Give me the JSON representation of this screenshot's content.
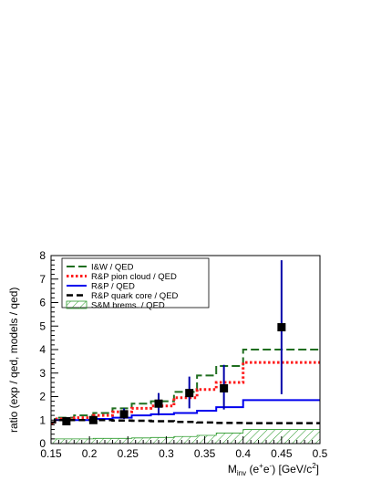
{
  "chart_data": {
    "type": "step",
    "xlim": [
      0.15,
      0.5
    ],
    "ylim": [
      0,
      8
    ],
    "x_ticks": [
      "0.15",
      "0.2",
      "0.25",
      "0.3",
      "0.35",
      "0.4",
      "0.45",
      "0.5"
    ],
    "y_ticks": [
      "0",
      "1",
      "2",
      "3",
      "4",
      "5",
      "6",
      "7",
      "8"
    ],
    "xlabel_main": "M",
    "xlabel_sub": "inv",
    "xlabel_rest": " (e",
    "xlabel_sup1": "+",
    "xlabel_mid": "e",
    "xlabel_sup2": "-",
    "xlabel_end": ") [GeV/c",
    "xlabel_sup3": "2",
    "xlabel_close": "]",
    "ylabel": "ratio (exp / qed, models / qed)",
    "bin_edges": [
      0.15,
      0.155,
      0.18,
      0.205,
      0.23,
      0.255,
      0.28,
      0.31,
      0.34,
      0.365,
      0.4,
      0.5
    ],
    "series": [
      {
        "name": "I&W / QED",
        "style": "long-dash",
        "color": "#1f6e1f",
        "values": [
          0.9,
          1.1,
          1.2,
          1.3,
          1.5,
          1.7,
          1.8,
          2.2,
          2.9,
          3.3,
          4.0
        ]
      },
      {
        "name": "R&P pion cloud / QED",
        "style": "dotted",
        "color": "#ff1a1a",
        "values": [
          0.85,
          1.05,
          1.1,
          1.2,
          1.35,
          1.5,
          1.6,
          1.95,
          2.3,
          2.6,
          3.45
        ]
      },
      {
        "name": "R&P / QED",
        "style": "solid",
        "color": "#0000ee",
        "values": [
          0.9,
          1.0,
          1.0,
          1.05,
          1.1,
          1.2,
          1.25,
          1.3,
          1.4,
          1.55,
          1.85
        ]
      },
      {
        "name": "R&P quark core / QED",
        "style": "dash",
        "color": "#000000",
        "values": [
          0.9,
          1.0,
          1.0,
          1.0,
          0.98,
          0.97,
          0.95,
          0.92,
          0.9,
          0.88,
          0.87
        ]
      },
      {
        "name": "S&M brems. / QED",
        "style": "hatched-fill",
        "color": "#2a9a2a",
        "values": [
          0.2,
          0.2,
          0.2,
          0.22,
          0.22,
          0.24,
          0.26,
          0.3,
          0.35,
          0.45,
          0.6
        ]
      }
    ],
    "data_points": [
      {
        "x": 0.17,
        "y": 0.95,
        "ylo": 0.8,
        "yhi": 1.1
      },
      {
        "x": 0.205,
        "y": 1.0,
        "ylo": 0.85,
        "yhi": 1.15
      },
      {
        "x": 0.245,
        "y": 1.25,
        "ylo": 1.05,
        "yhi": 1.5
      },
      {
        "x": 0.29,
        "y": 1.7,
        "ylo": 1.2,
        "yhi": 2.15
      },
      {
        "x": 0.33,
        "y": 2.15,
        "ylo": 1.5,
        "yhi": 2.85
      },
      {
        "x": 0.375,
        "y": 2.35,
        "ylo": 1.45,
        "yhi": 3.35
      },
      {
        "x": 0.45,
        "y": 4.95,
        "ylo": 2.1,
        "yhi": 7.8
      }
    ],
    "data_point_color": "#0000aa",
    "legend_position": "top-left"
  }
}
